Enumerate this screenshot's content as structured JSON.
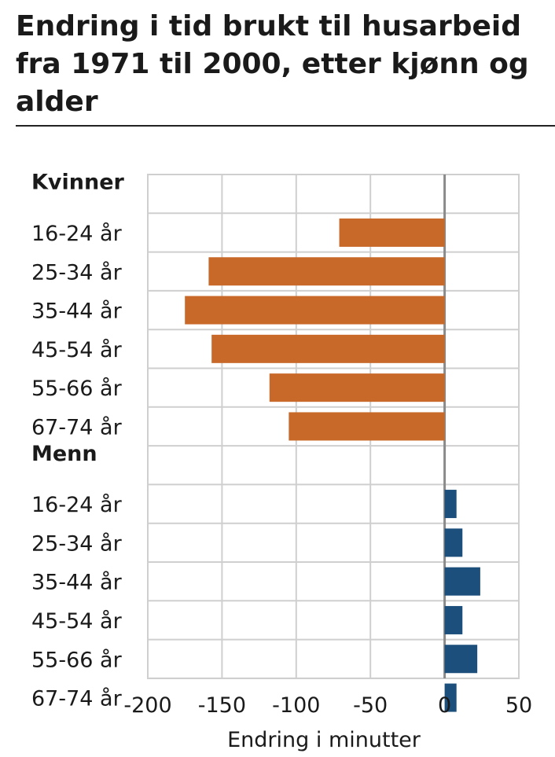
{
  "chart_data": {
    "type": "bar",
    "orientation": "horizontal",
    "title": "Endring i tid brukt til husarbeid fra 1971 til 2000, etter kjønn og alder",
    "xlabel": "Endring i minutter",
    "ylabel": "",
    "xlim": [
      -200,
      50
    ],
    "xticks": [
      -200,
      -150,
      -100,
      -50,
      0,
      50
    ],
    "xtick_labels": [
      "-200",
      "-150",
      "-100",
      "-50",
      "0",
      "50"
    ],
    "grid": true,
    "colors": {
      "Kvinner": "#c8692a",
      "Menn": "#1c4f7c"
    },
    "series": [
      {
        "group": "Kvinner",
        "categories": [
          "16-24 år",
          "25-34 år",
          "35-44 år",
          "45-54 år",
          "55-66 år",
          "67-74 år"
        ],
        "values": [
          -71,
          -159,
          -175,
          -157,
          -118,
          -105
        ]
      },
      {
        "group": "Menn",
        "categories": [
          "16-24 år",
          "25-34 år",
          "35-44 år",
          "45-54 år",
          "55-66 år",
          "67-74 år"
        ],
        "values": [
          8,
          12,
          24,
          12,
          22,
          8
        ]
      }
    ]
  }
}
